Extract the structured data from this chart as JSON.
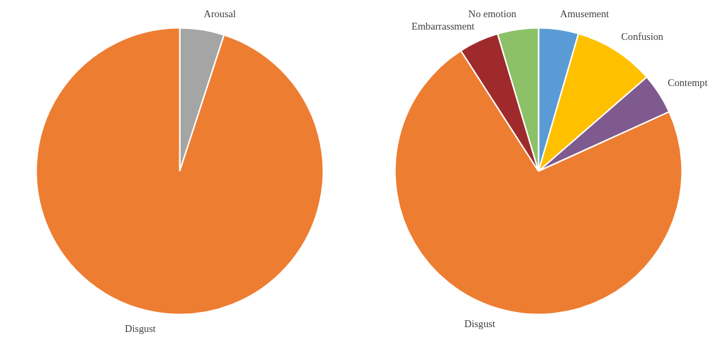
{
  "chart_data": [
    {
      "type": "pie",
      "categories": [
        "Arousal",
        "Disgust"
      ],
      "values": [
        5,
        95
      ],
      "colors": [
        "#a5a5a5",
        "#ed7d31"
      ]
    },
    {
      "type": "pie",
      "categories": [
        "Amusement",
        "Confusion",
        "Contempt",
        "Disgust",
        "Embarrassment",
        "No emotion"
      ],
      "values": [
        4.5,
        9.1,
        4.6,
        72.7,
        4.5,
        4.6
      ],
      "colors": [
        "#5b9bd5",
        "#ffc000",
        "#7e5a8e",
        "#ed7d31",
        "#9e2a2b",
        "#8cc168"
      ]
    }
  ]
}
